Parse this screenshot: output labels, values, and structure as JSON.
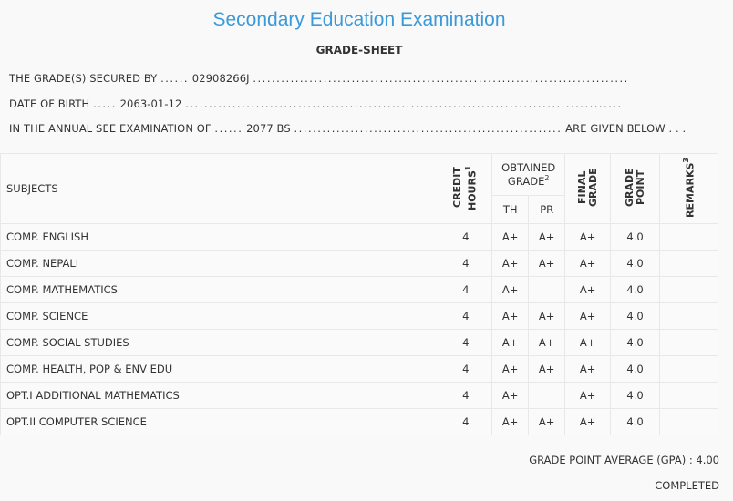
{
  "header": {
    "title": "Secondary Education Examination",
    "subtitle": "GRADE-SHEET"
  },
  "info": {
    "line1_label": "THE GRADE(S) SECURED BY",
    "line1_lead_dots": "......",
    "line1_value": "02908266J",
    "line1_trail_dots": "................................................................................",
    "line2_label": "DATE OF BIRTH",
    "line2_lead_dots": ".....",
    "line2_value": "2063-01-12",
    "line2_trail_dots": ".............................................................................................",
    "line3_label": "IN THE ANNUAL SEE EXAMINATION OF",
    "line3_lead_dots": "......",
    "line3_value": "2077 BS",
    "line3_mid_dots": ".........................................................",
    "line3_tail": "ARE GIVEN BELOW . . ."
  },
  "table": {
    "col_subjects": "SUBJECTS",
    "col_credit": "CREDIT HOURS",
    "col_credit_sup": "1",
    "col_obtained": "OBTAINED GRADE",
    "col_obtained_sup": "2",
    "col_final": "FINAL GRADE",
    "col_gradepoint": "GRADE POINT",
    "col_remarks": "REMARKS",
    "col_remarks_sup": "3",
    "col_th": "TH",
    "col_pr": "PR",
    "rows": [
      {
        "subject": "COMP. ENGLISH",
        "credit": "4",
        "th": "A+",
        "pr": "A+",
        "final": "A+",
        "gp": "4.0",
        "remarks": ""
      },
      {
        "subject": "COMP. NEPALI",
        "credit": "4",
        "th": "A+",
        "pr": "A+",
        "final": "A+",
        "gp": "4.0",
        "remarks": ""
      },
      {
        "subject": "COMP. MATHEMATICS",
        "credit": "4",
        "th": "A+",
        "pr": "",
        "final": "A+",
        "gp": "4.0",
        "remarks": ""
      },
      {
        "subject": "COMP. SCIENCE",
        "credit": "4",
        "th": "A+",
        "pr": "A+",
        "final": "A+",
        "gp": "4.0",
        "remarks": ""
      },
      {
        "subject": "COMP. SOCIAL STUDIES",
        "credit": "4",
        "th": "A+",
        "pr": "A+",
        "final": "A+",
        "gp": "4.0",
        "remarks": ""
      },
      {
        "subject": "COMP. HEALTH, POP & ENV EDU",
        "credit": "4",
        "th": "A+",
        "pr": "A+",
        "final": "A+",
        "gp": "4.0",
        "remarks": ""
      },
      {
        "subject": "OPT.I ADDITIONAL MATHEMATICS",
        "credit": "4",
        "th": "A+",
        "pr": "",
        "final": "A+",
        "gp": "4.0",
        "remarks": ""
      },
      {
        "subject": "OPT.II COMPUTER SCIENCE",
        "credit": "4",
        "th": "A+",
        "pr": "A+",
        "final": "A+",
        "gp": "4.0",
        "remarks": ""
      }
    ]
  },
  "summary": {
    "gpa_label": "GRADE POINT AVERAGE (GPA) :",
    "gpa_value": "4.00",
    "status": "COMPLETED"
  }
}
